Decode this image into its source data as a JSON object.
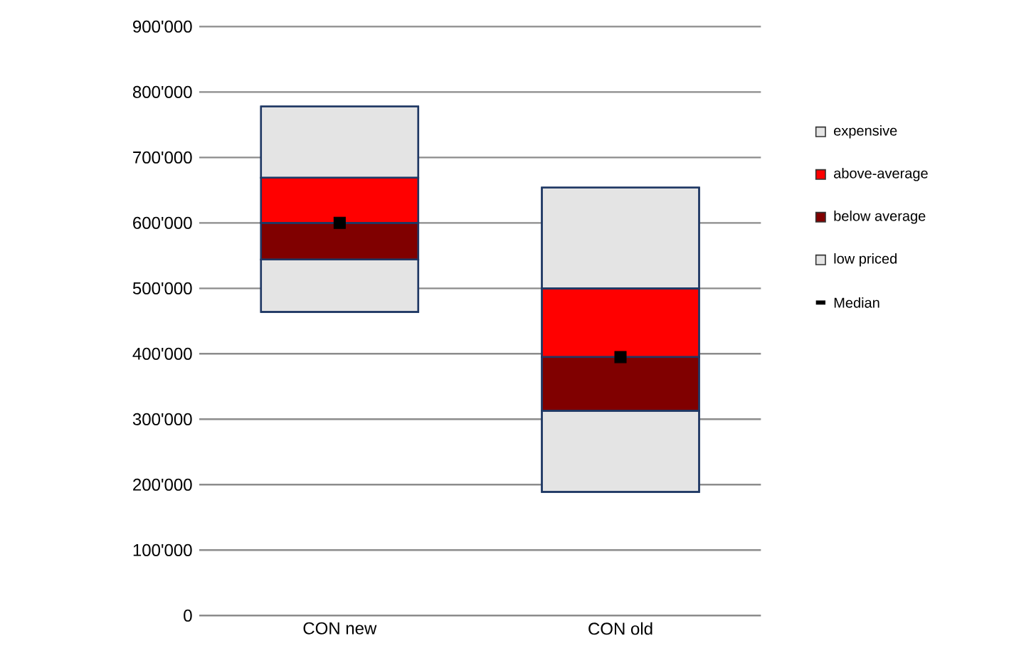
{
  "chart_data": {
    "type": "bar",
    "categories": [
      "CON new",
      "CON old"
    ],
    "series": [
      {
        "name": "low priced",
        "color": "#e4e4e4",
        "base": [
          464000,
          189000
        ],
        "values": [
          80000,
          124000
        ]
      },
      {
        "name": "below average",
        "color": "#800000",
        "base": [
          544000,
          313000
        ],
        "values": [
          56000,
          82000
        ]
      },
      {
        "name": "above-average",
        "color": "#ff0000",
        "base": [
          600000,
          395000
        ],
        "values": [
          69000,
          105000
        ]
      },
      {
        "name": "expensive",
        "color": "#e4e4e4",
        "base": [
          669000,
          500000
        ],
        "values": [
          109000,
          154000
        ]
      },
      {
        "name": "Median",
        "type": "scatter",
        "color": "#000000",
        "x": [
          "CON new",
          "CON old"
        ],
        "values": [
          600000,
          395000
        ]
      }
    ],
    "ylim": [
      0,
      900000
    ],
    "yticks": [
      0,
      {
        "value": 100000,
        "label": "100'000"
      },
      {
        "value": 200000,
        "label": "200'000"
      },
      {
        "value": 300000,
        "label": "300'000"
      },
      {
        "value": 400000,
        "label": "400'000"
      },
      {
        "value": 500000,
        "label": "500'000"
      },
      {
        "value": 600000,
        "label": "600'000"
      },
      {
        "value": 700000,
        "label": "700'000"
      },
      {
        "value": 800000,
        "label": "800'000"
      },
      {
        "value": 900000,
        "label": "900'000"
      }
    ],
    "grid": "y",
    "legend": "right"
  }
}
